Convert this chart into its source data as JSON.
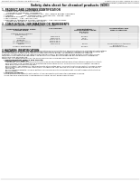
{
  "title": "Safety data sheet for chemical products (SDS)",
  "header_left": "Product name: Lithium Ion Battery Cell",
  "header_right_line1": "Substance number: MB4M-06-0010",
  "header_right_line2": "Establishment / Revision: Dec.7.2016",
  "section1_title": "1. PRODUCT AND COMPANY IDENTIFICATION",
  "section1_lines": [
    "  • Product name: Lithium Ion Battery Cell",
    "  • Product code: Cylindrical-type cell",
    "       (IHR18500, IHR18650, IHR18650A)",
    "  • Company name:     Sanyo Electric Co., Ltd., Mobile Energy Company",
    "  • Address:            2001  Kamimakomi, Sumoto-City, Hyogo, Japan",
    "  • Telephone number:   +81-799-26-4111",
    "  • Fax number:   +81-799-26-4120",
    "  • Emergency telephone number (Weekday): +81-799-26-2862",
    "       (Night and holiday): +81-799-26-2120"
  ],
  "section2_title": "2. COMPOSITION / INFORMATION ON INGREDIENTS",
  "section2_intro": "  • Substance or preparation: Preparation",
  "section2_sub": "  • Information about the chemical nature of product:",
  "col_headers_row1": [
    "Component/chemical name",
    "CAS number",
    "Concentration /",
    "Classification and"
  ],
  "col_headers_row2": [
    "",
    "",
    "Concentration range",
    "hazard labeling"
  ],
  "col_headers_row3": [
    "Several name",
    "",
    "(30-60%)",
    ""
  ],
  "table_rows": [
    [
      "Lithium oxide/Carbide",
      "-",
      "  -",
      "-"
    ],
    [
      "(LiMnCoNiO2)",
      "",
      "",
      ""
    ],
    [
      "Iron",
      "7439-89-6",
      "10-20%",
      "-"
    ],
    [
      "Aluminum",
      "7429-90-5",
      "2-5%",
      "-"
    ],
    [
      "Graphite",
      "",
      "10-20%",
      "-"
    ],
    [
      "(Al-Mo graphite-1)",
      "77709-16-3",
      "",
      ""
    ],
    [
      "(Al-Mo graphite-2)",
      "77709-44-2",
      "",
      ""
    ],
    [
      "Copper",
      "7440-50-8",
      "5-15%",
      "Sensitization of the skin"
    ],
    [
      "",
      "",
      "",
      "group No.2"
    ],
    [
      "Organic electrolyte",
      "-",
      "10-20%",
      "Inflammable liquid"
    ]
  ],
  "section3_title": "3 HAZARDS IDENTIFICATION",
  "section3_body": [
    "For the battery cell, chemical materials are stored in a hermetically sealed metal case, designed to withstand",
    "temperatures and pressures-concentrations during normal use. As a result, during normal use, there is no",
    "physical danger of ignition or explosion and there is no danger of hazardous materials leakage.",
    "However, if exposed to a fire, added mechanical shocks, decomposed, where electric-shock may occur,",
    "the gas inside cannot be operated. The battery cell case will be breached at fire patterns, hazardous",
    "materials may be released.",
    "Moreover, if heated strongly by the surrounding fire, some gas may be emitted."
  ],
  "section3_effects_title": "  • Most important hazard and effects:",
  "section3_human_title": "    Human health effects:",
  "section3_human_lines": [
    "      Inhalation: The release of the electrolyte has an anesthesia action and stimulates in respiratory tract.",
    "      Skin contact: The release of the electrolyte stimulates a skin. The electrolyte skin contact causes a",
    "      sore and stimulation on the skin.",
    "      Eye contact: The release of the electrolyte stimulates eyes. The electrolyte eye contact causes a sore",
    "      and stimulation on the eye. Especially, a substance that causes a strong inflammation of the eye is",
    "      contained.",
    "      Environmental effects: Since a battery cell remains in the environment, do not throw out it into the",
    "      environment."
  ],
  "section3_specific_title": "  • Specific hazards:",
  "section3_specific_lines": [
    "    If the electrolyte contacts with water, it will generate detrimental hydrogen fluoride.",
    "    Since the seal-electrolyte is inflammable liquid, do not bring close to fire."
  ],
  "bg_color": "#ffffff",
  "text_color": "#111111",
  "grey_text": "#444444",
  "line_color": "#999999",
  "table_line_color": "#aaaaaa",
  "table_header_bg": "#e0e0e0"
}
